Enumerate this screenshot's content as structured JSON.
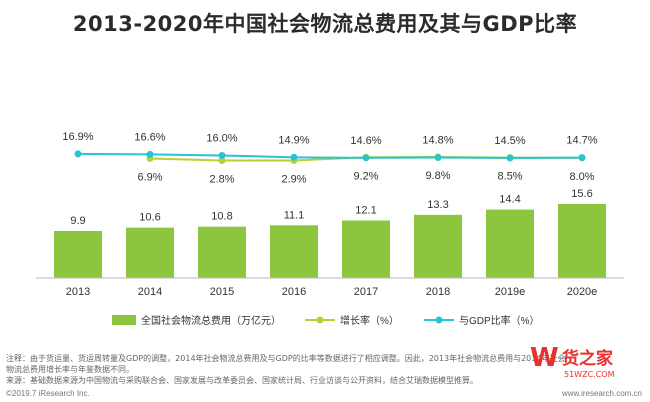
{
  "title": "2013-2020年中国社会物流总费用及其与GDP比率",
  "notes": {
    "note": "注释：由于货运量、货运周转量及GDP的调整，2014年社会物流总费用及与GDP的比率等数据进行了相应调整。因此，2013年社会物流总费用与2014年社会物流总费用增长率与年鉴数据不同。",
    "source": "来源：基础数据来源为中国物流与采购联合会、国家发展与改革委员会、国家统计局、行业访谈与公开资料，结合艾瑞数据模型推算。"
  },
  "footer": {
    "copyright": "©2019.7 iResearch Inc.",
    "site": "www.iresearch.com.cn"
  },
  "watermark": {
    "text": "货之家",
    "sub": "51WZC.COM"
  },
  "colors": {
    "bar": "#8cc63f",
    "growth_line": "#b2d235",
    "gdp_line": "#29c4d4",
    "text": "#333333"
  },
  "chart_data": {
    "type": "bar",
    "categories": [
      "2013",
      "2014",
      "2015",
      "2016",
      "2017",
      "2018",
      "2019e",
      "2020e"
    ],
    "series": [
      {
        "name": "全国社会物流总费用（万亿元）",
        "type": "bar",
        "values": [
          9.9,
          10.6,
          10.8,
          11.1,
          12.1,
          13.3,
          14.4,
          15.6
        ],
        "labels": [
          "9.9",
          "10.6",
          "10.8",
          "11.1",
          "12.1",
          "13.3",
          "14.4",
          "15.6"
        ]
      },
      {
        "name": "增长率（%）",
        "type": "line",
        "values": [
          null,
          6.9,
          2.8,
          2.9,
          9.2,
          9.8,
          8.5,
          8.0
        ],
        "labels": [
          "",
          "6.9%",
          "2.8%",
          "2.9%",
          "9.2%",
          "9.8%",
          "8.5%",
          "8.0%"
        ]
      },
      {
        "name": "与GDP比率（%）",
        "type": "line",
        "values": [
          16.9,
          16.6,
          16.0,
          14.9,
          14.6,
          14.8,
          14.5,
          14.7
        ],
        "labels": [
          "16.9%",
          "16.6%",
          "16.0%",
          "14.9%",
          "14.6%",
          "14.8%",
          "14.5%",
          "14.7%"
        ]
      }
    ],
    "legend_position": "bottom"
  }
}
